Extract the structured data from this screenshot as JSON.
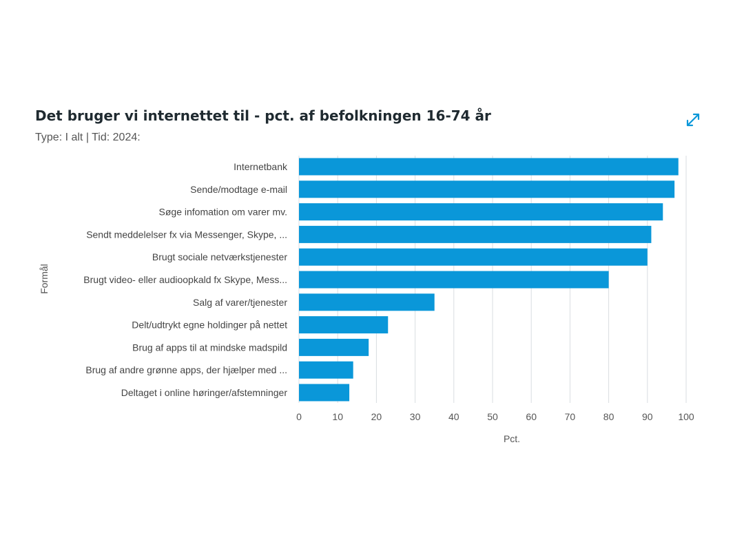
{
  "chart_data": {
    "type": "bar",
    "orientation": "horizontal",
    "title": "Det bruger vi internettet til - pct. af befolkningen 16-74 år",
    "subtitle": "Type: I alt | Tid: 2024:",
    "xlabel": "Pct.",
    "ylabel": "Formål",
    "xlim": [
      0,
      100
    ],
    "xticks": [
      0,
      10,
      20,
      30,
      40,
      50,
      60,
      70,
      80,
      90,
      100
    ],
    "grid": true,
    "bar_color": "#0a97d9",
    "categories": [
      "Internetbank",
      "Sende/modtage e-mail",
      "Søge infomation om varer mv.",
      "Sendt meddelelser fx via Messenger, Skype, ...",
      "Brugt sociale netværkstjenester",
      "Brugt video- eller audioopkald fx Skype, Mess...",
      "Salg af varer/tjenester",
      "Delt/udtrykt egne holdinger på nettet",
      "Brug af apps til at mindske madspild",
      "Brug af andre grønne apps, der hjælper med ...",
      "Deltaget i online høringer/afstemninger"
    ],
    "values": [
      98,
      97,
      94,
      91,
      90,
      80,
      35,
      23,
      18,
      14,
      13
    ]
  },
  "toolbar": {
    "expand_icon": "expand-icon"
  }
}
